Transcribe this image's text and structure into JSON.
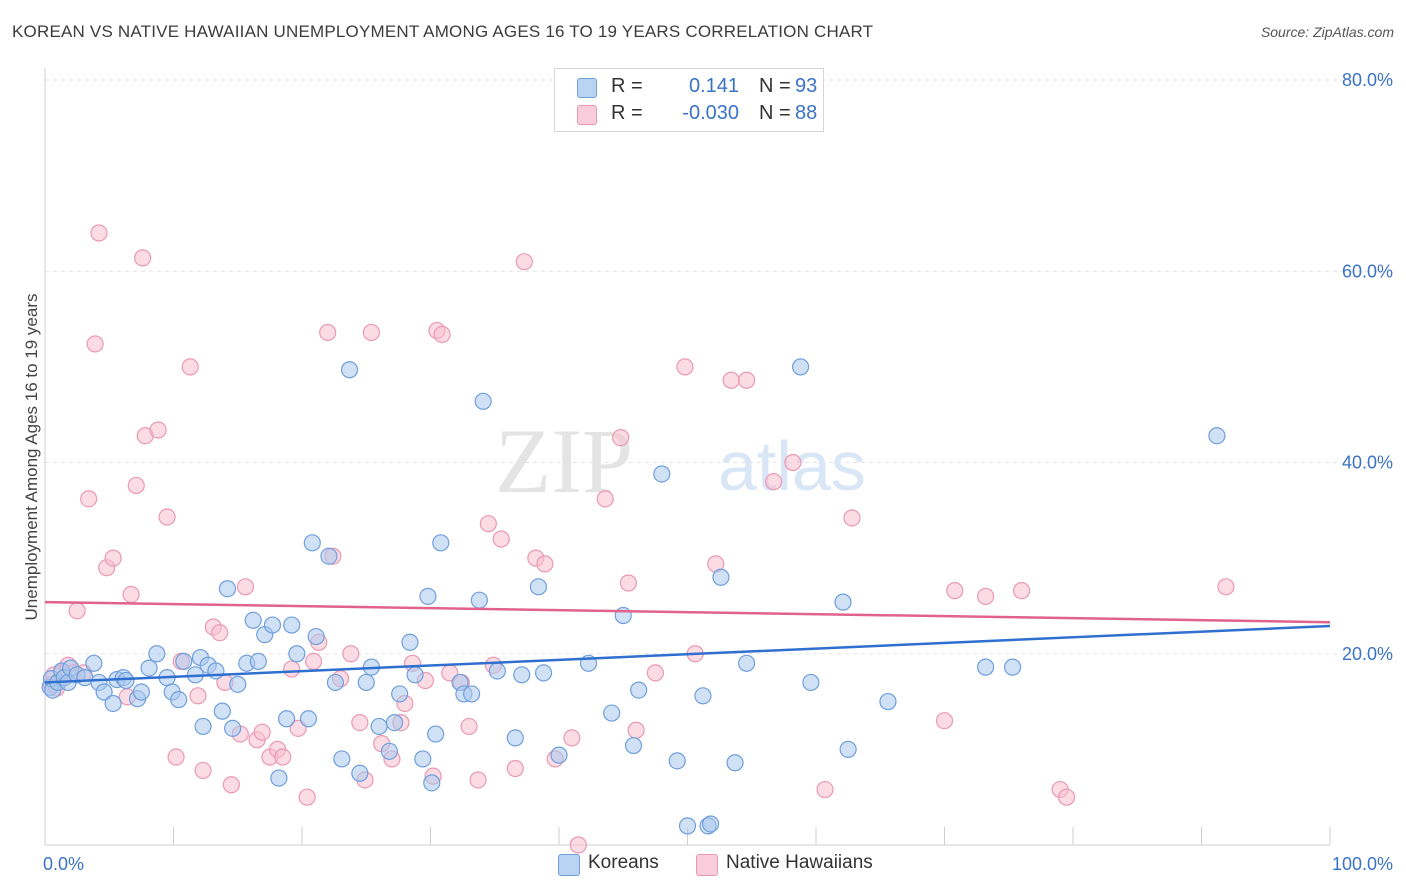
{
  "title": "KOREAN VS NATIVE HAWAIIAN UNEMPLOYMENT AMONG AGES 16 TO 19 YEARS CORRELATION CHART",
  "source": "Source: ZipAtlas.com",
  "watermark": {
    "zip": "ZIP",
    "atlas": "atlas"
  },
  "legend": {
    "koreans": {
      "r_label": "R =",
      "r_value": "0.141",
      "n_label": "N =",
      "n_value": "93"
    },
    "hawaiians": {
      "r_label": "R =",
      "r_value": "-0.030",
      "n_label": "N =",
      "n_value": "88"
    }
  },
  "bottom_legend": {
    "koreans": "Koreans",
    "hawaiians": "Native Hawaiians"
  },
  "colors": {
    "blue_fill": "#a9c8ef",
    "blue_stroke": "#6f9fdc",
    "blue_line": "#2f6fcf",
    "pink_fill": "#f7bfd0",
    "pink_stroke": "#eb98b3",
    "pink_line": "#e0628d",
    "axis_text": "#3a73c6",
    "grid": "#e3e3e3"
  },
  "chart_data": {
    "type": "scatter",
    "xlabel": "",
    "ylabel": "Unemployment Among Ages 16 to 19 years",
    "xlim": [
      0,
      100
    ],
    "ylim": [
      0,
      80
    ],
    "x_tick_labels": [
      "0.0%",
      "100.0%"
    ],
    "y_ticks": [
      20,
      40,
      60,
      80
    ],
    "y_tick_labels": [
      "20.0%",
      "40.0%",
      "60.0%",
      "80.0%"
    ],
    "grid": true,
    "legend_position": "top-center",
    "series": [
      {
        "name": "Koreans",
        "trend": [
          [
            0,
            17.0
          ],
          [
            100,
            22.9
          ]
        ],
        "points": [
          [
            0.4,
            16.5
          ],
          [
            0.5,
            17.4
          ],
          [
            0.6,
            16.2
          ],
          [
            1.0,
            17.0
          ],
          [
            1.3,
            18.2
          ],
          [
            1.5,
            17.5
          ],
          [
            1.8,
            17.0
          ],
          [
            2.0,
            18.5
          ],
          [
            2.5,
            17.8
          ],
          [
            3.1,
            17.5
          ],
          [
            3.8,
            19.0
          ],
          [
            4.2,
            17.0
          ],
          [
            4.6,
            16.0
          ],
          [
            5.3,
            14.8
          ],
          [
            5.6,
            17.3
          ],
          [
            6.1,
            17.5
          ],
          [
            6.3,
            17.2
          ],
          [
            7.2,
            15.3
          ],
          [
            7.5,
            16.0
          ],
          [
            8.1,
            18.5
          ],
          [
            8.7,
            20.0
          ],
          [
            9.5,
            17.5
          ],
          [
            9.9,
            16.0
          ],
          [
            10.4,
            15.2
          ],
          [
            10.8,
            19.2
          ],
          [
            11.7,
            17.8
          ],
          [
            12.1,
            19.6
          ],
          [
            12.3,
            12.4
          ],
          [
            12.7,
            18.8
          ],
          [
            13.3,
            18.2
          ],
          [
            13.8,
            14.0
          ],
          [
            14.2,
            26.8
          ],
          [
            14.6,
            12.2
          ],
          [
            15.0,
            16.8
          ],
          [
            15.7,
            19.0
          ],
          [
            16.2,
            23.5
          ],
          [
            16.6,
            19.2
          ],
          [
            17.1,
            22.0
          ],
          [
            17.7,
            23.0
          ],
          [
            18.2,
            7.0
          ],
          [
            18.8,
            13.2
          ],
          [
            19.2,
            23.0
          ],
          [
            19.6,
            20.0
          ],
          [
            20.5,
            13.2
          ],
          [
            20.8,
            31.6
          ],
          [
            21.1,
            21.8
          ],
          [
            22.1,
            30.2
          ],
          [
            22.6,
            17.0
          ],
          [
            23.1,
            9.0
          ],
          [
            23.7,
            49.7
          ],
          [
            24.5,
            7.5
          ],
          [
            25.0,
            17.0
          ],
          [
            25.4,
            18.6
          ],
          [
            26.0,
            12.4
          ],
          [
            26.8,
            9.8
          ],
          [
            27.2,
            12.8
          ],
          [
            27.6,
            15.8
          ],
          [
            28.4,
            21.2
          ],
          [
            28.8,
            17.8
          ],
          [
            29.4,
            9.0
          ],
          [
            29.8,
            26.0
          ],
          [
            30.1,
            6.5
          ],
          [
            30.4,
            11.6
          ],
          [
            30.8,
            31.6
          ],
          [
            32.3,
            17.0
          ],
          [
            32.6,
            15.8
          ],
          [
            33.2,
            15.8
          ],
          [
            33.8,
            25.6
          ],
          [
            34.1,
            46.4
          ],
          [
            35.2,
            18.2
          ],
          [
            36.6,
            11.2
          ],
          [
            37.1,
            17.8
          ],
          [
            38.4,
            27.0
          ],
          [
            38.8,
            18.0
          ],
          [
            40.0,
            9.4
          ],
          [
            42.3,
            19.0
          ],
          [
            44.1,
            13.8
          ],
          [
            45.0,
            24.0
          ],
          [
            45.8,
            10.4
          ],
          [
            46.2,
            16.2
          ],
          [
            48.0,
            38.8
          ],
          [
            49.2,
            8.8
          ],
          [
            50.0,
            2.0
          ],
          [
            51.2,
            15.6
          ],
          [
            51.6,
            2.0
          ],
          [
            51.8,
            2.2
          ],
          [
            52.6,
            28.0
          ],
          [
            53.7,
            8.6
          ],
          [
            54.6,
            19.0
          ],
          [
            58.8,
            50.0
          ],
          [
            59.6,
            17.0
          ],
          [
            62.1,
            25.4
          ],
          [
            62.5,
            10.0
          ],
          [
            65.6,
            15.0
          ],
          [
            73.2,
            18.6
          ],
          [
            75.3,
            18.6
          ],
          [
            91.2,
            42.8
          ]
        ]
      },
      {
        "name": "Native Hawaiians",
        "trend": [
          [
            0,
            25.4
          ],
          [
            100,
            23.3
          ]
        ],
        "points": [
          [
            0.5,
            16.8
          ],
          [
            0.7,
            17.8
          ],
          [
            0.9,
            16.4
          ],
          [
            1.3,
            18.0
          ],
          [
            1.8,
            18.8
          ],
          [
            2.2,
            18.0
          ],
          [
            2.5,
            24.5
          ],
          [
            3.0,
            18.0
          ],
          [
            3.4,
            36.2
          ],
          [
            3.9,
            52.4
          ],
          [
            4.2,
            64.0
          ],
          [
            4.8,
            29.0
          ],
          [
            5.3,
            30.0
          ],
          [
            6.4,
            15.5
          ],
          [
            6.7,
            26.2
          ],
          [
            7.1,
            37.6
          ],
          [
            7.6,
            61.4
          ],
          [
            7.8,
            42.8
          ],
          [
            8.8,
            43.4
          ],
          [
            9.5,
            34.3
          ],
          [
            10.2,
            9.2
          ],
          [
            10.6,
            19.2
          ],
          [
            11.3,
            50.0
          ],
          [
            11.9,
            15.6
          ],
          [
            12.3,
            7.8
          ],
          [
            13.1,
            22.8
          ],
          [
            13.6,
            22.2
          ],
          [
            14.0,
            17.0
          ],
          [
            14.5,
            6.3
          ],
          [
            15.2,
            11.6
          ],
          [
            15.6,
            27.0
          ],
          [
            16.5,
            11.0
          ],
          [
            16.9,
            11.8
          ],
          [
            17.5,
            9.2
          ],
          [
            18.1,
            10.0
          ],
          [
            18.5,
            9.2
          ],
          [
            19.2,
            18.4
          ],
          [
            19.7,
            12.2
          ],
          [
            20.4,
            5.0
          ],
          [
            20.9,
            19.2
          ],
          [
            21.3,
            21.2
          ],
          [
            22.0,
            53.6
          ],
          [
            22.4,
            30.2
          ],
          [
            23.0,
            17.4
          ],
          [
            23.8,
            20.0
          ],
          [
            24.5,
            12.8
          ],
          [
            24.9,
            6.8
          ],
          [
            25.4,
            53.6
          ],
          [
            26.2,
            10.6
          ],
          [
            27.0,
            9.0
          ],
          [
            27.7,
            12.8
          ],
          [
            28.0,
            14.8
          ],
          [
            28.6,
            19.0
          ],
          [
            29.6,
            17.2
          ],
          [
            30.2,
            7.2
          ],
          [
            30.5,
            53.8
          ],
          [
            30.9,
            53.4
          ],
          [
            31.5,
            18.0
          ],
          [
            32.4,
            17.0
          ],
          [
            33.0,
            12.4
          ],
          [
            33.7,
            6.8
          ],
          [
            34.5,
            33.6
          ],
          [
            34.9,
            18.8
          ],
          [
            35.5,
            32.0
          ],
          [
            36.6,
            8.0
          ],
          [
            37.3,
            61.0
          ],
          [
            38.2,
            30.0
          ],
          [
            38.9,
            29.4
          ],
          [
            39.7,
            9.0
          ],
          [
            41.0,
            11.2
          ],
          [
            41.5,
            0.0
          ],
          [
            43.6,
            36.2
          ],
          [
            44.8,
            42.6
          ],
          [
            45.4,
            27.4
          ],
          [
            46.0,
            12.0
          ],
          [
            47.5,
            18.0
          ],
          [
            49.8,
            50.0
          ],
          [
            50.6,
            20.0
          ],
          [
            52.2,
            29.4
          ],
          [
            53.4,
            48.6
          ],
          [
            54.6,
            48.6
          ],
          [
            56.7,
            38.0
          ],
          [
            58.2,
            40.0
          ],
          [
            60.7,
            5.8
          ],
          [
            62.8,
            34.2
          ],
          [
            70.0,
            13.0
          ],
          [
            70.8,
            26.6
          ],
          [
            73.2,
            26.0
          ],
          [
            76.0,
            26.6
          ],
          [
            79.0,
            5.8
          ],
          [
            79.5,
            5.0
          ],
          [
            91.9,
            27.0
          ]
        ]
      }
    ]
  }
}
